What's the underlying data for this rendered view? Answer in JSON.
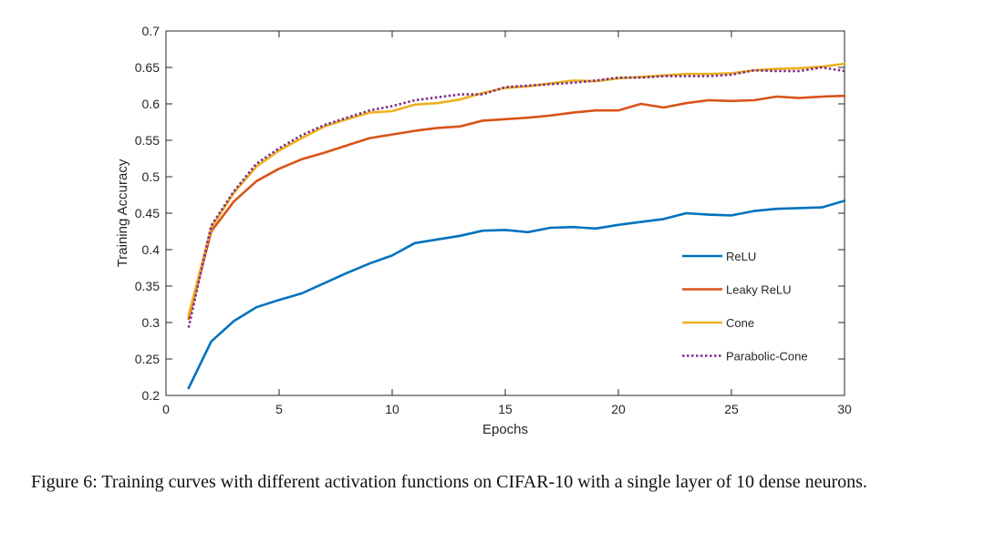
{
  "chart_data": {
    "type": "line",
    "xlabel": "Epochs",
    "ylabel": "Training Accuracy",
    "xlim": [
      0,
      30
    ],
    "ylim": [
      0.2,
      0.7
    ],
    "xticks": [
      0,
      5,
      10,
      15,
      20,
      25,
      30
    ],
    "yticks": [
      0.2,
      0.25,
      0.3,
      0.35,
      0.4,
      0.45,
      0.5,
      0.55,
      0.6,
      0.65,
      0.7
    ],
    "xtick_labels": [
      "0",
      "5",
      "10",
      "15",
      "20",
      "25",
      "30"
    ],
    "ytick_labels": [
      "0.2",
      "0.25",
      "0.3",
      "0.35",
      "0.4",
      "0.45",
      "0.5",
      "0.55",
      "0.6",
      "0.65",
      "0.7"
    ],
    "grid": false,
    "legend_position": "lower-right",
    "x": [
      1,
      2,
      3,
      4,
      5,
      6,
      7,
      8,
      9,
      10,
      11,
      12,
      13,
      14,
      15,
      16,
      17,
      18,
      19,
      20,
      21,
      22,
      23,
      24,
      25,
      26,
      27,
      28,
      29,
      30
    ],
    "series": [
      {
        "name": "ReLU",
        "color": "#0072BD",
        "style": "solid",
        "values": [
          0.21,
          0.274,
          0.302,
          0.321,
          0.331,
          0.34,
          0.354,
          0.368,
          0.381,
          0.392,
          0.409,
          0.414,
          0.419,
          0.426,
          0.427,
          0.424,
          0.43,
          0.431,
          0.429,
          0.434,
          0.438,
          0.442,
          0.45,
          0.448,
          0.447,
          0.453,
          0.456,
          0.457,
          0.458,
          0.467
        ]
      },
      {
        "name": "Leaky ReLU",
        "color": "#D95319",
        "style": "solid",
        "values": [
          0.305,
          0.425,
          0.466,
          0.494,
          0.511,
          0.524,
          0.533,
          0.543,
          0.553,
          0.558,
          0.563,
          0.567,
          0.569,
          0.577,
          0.579,
          0.581,
          0.584,
          0.588,
          0.591,
          0.591,
          0.6,
          0.595,
          0.601,
          0.605,
          0.604,
          0.605,
          0.61,
          0.608,
          0.61,
          0.611
        ]
      },
      {
        "name": "Cone",
        "color": "#EDB120",
        "style": "solid",
        "values": [
          0.31,
          0.43,
          0.478,
          0.514,
          0.536,
          0.553,
          0.569,
          0.579,
          0.588,
          0.59,
          0.599,
          0.601,
          0.606,
          0.615,
          0.622,
          0.624,
          0.628,
          0.632,
          0.631,
          0.635,
          0.637,
          0.639,
          0.641,
          0.641,
          0.642,
          0.646,
          0.648,
          0.649,
          0.651,
          0.655
        ]
      },
      {
        "name": "Parabolic-Cone",
        "color": "#7E2F8E",
        "style": "dotted",
        "values": [
          0.293,
          0.433,
          0.48,
          0.518,
          0.539,
          0.557,
          0.571,
          0.581,
          0.591,
          0.597,
          0.605,
          0.609,
          0.613,
          0.613,
          0.623,
          0.625,
          0.627,
          0.629,
          0.632,
          0.636,
          0.636,
          0.638,
          0.638,
          0.638,
          0.64,
          0.646,
          0.645,
          0.645,
          0.65,
          0.645
        ]
      }
    ]
  },
  "caption": "Figure 6: Training curves with different activation functions on CIFAR-10 with a single layer of 10 dense neurons."
}
